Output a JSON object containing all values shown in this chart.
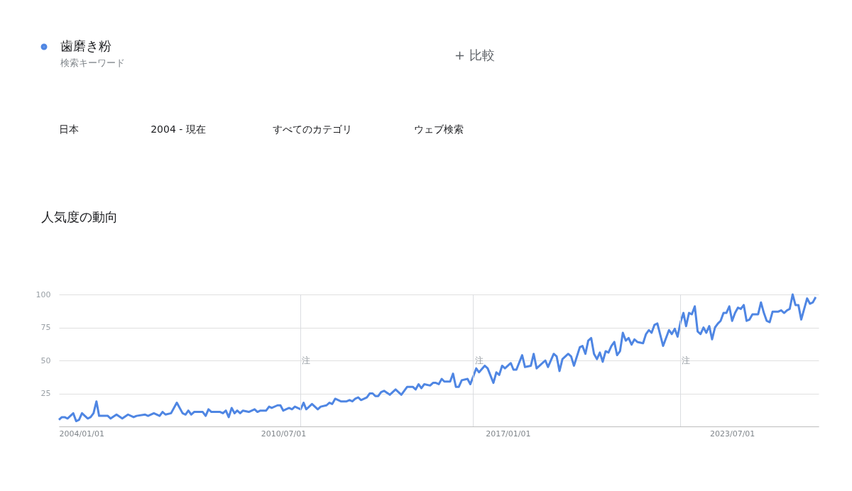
{
  "chart_data": {
    "type": "line",
    "title": "人気度の動向",
    "annotations": [
      "検索キーワード",
      "+  比較",
      "日本",
      "2004 - 現在",
      "すべてのカテゴリ",
      "ウェブ検索"
    ],
    "x": [
      "2004-01",
      "2004-02",
      "2004-03",
      "2004-04",
      "2004-06",
      "2004-07",
      "2004-08",
      "2004-09",
      "2004-10",
      "2004-11",
      "2004-12",
      "2005-01",
      "2005-02",
      "2005-03",
      "2005-06",
      "2005-07",
      "2005-09",
      "2005-11",
      "2006-01",
      "2006-03",
      "2006-04",
      "2006-07",
      "2006-08",
      "2006-10",
      "2006-12",
      "2007-01",
      "2007-02",
      "2007-04",
      "2007-06",
      "2007-08",
      "2007-09",
      "2007-10",
      "2007-11",
      "2007-12",
      "2008-03",
      "2008-04",
      "2008-05",
      "2008-06",
      "2008-09",
      "2008-10",
      "2008-11",
      "2008-12",
      "2009-01",
      "2009-02",
      "2009-03",
      "2009-04",
      "2009-05",
      "2009-07",
      "2009-09",
      "2009-10",
      "2009-11",
      "2010-01",
      "2010-02",
      "2010-03",
      "2010-05",
      "2010-06",
      "2010-07",
      "2010-09",
      "2010-10",
      "2010-11",
      "2011-01",
      "2011-02",
      "2011-03",
      "2011-04",
      "2011-05",
      "2011-07",
      "2011-08",
      "2011-10",
      "2011-11",
      "2011-12",
      "2012-01",
      "2012-03",
      "2012-05",
      "2012-06",
      "2012-07",
      "2012-08",
      "2012-09",
      "2012-10",
      "2012-12",
      "2013-01",
      "2013-02",
      "2013-03",
      "2013-04",
      "2013-05",
      "2013-06",
      "2013-08",
      "2013-10",
      "2013-12",
      "2014-02",
      "2014-04",
      "2014-05",
      "2014-06",
      "2014-07",
      "2014-08",
      "2014-10",
      "2014-11",
      "2014-12",
      "2015-01",
      "2015-02",
      "2015-03",
      "2015-05",
      "2015-06",
      "2015-07",
      "2015-08",
      "2015-09",
      "2015-11",
      "2015-12",
      "2016-02",
      "2016-03",
      "2016-05",
      "2016-06",
      "2016-08",
      "2016-09",
      "2016-10",
      "2016-11",
      "2016-12",
      "2017-02",
      "2017-03",
      "2017-04",
      "2017-06",
      "2017-07",
      "2017-09",
      "2017-10",
      "2017-11",
      "2018-02",
      "2018-03",
      "2018-05",
      "2018-06",
      "2018-07",
      "2018-08",
      "2018-10",
      "2018-11",
      "2018-12",
      "2019-02",
      "2019-03",
      "2019-04",
      "2019-05",
      "2019-06",
      "2019-07",
      "2019-08",
      "2019-09",
      "2019-10",
      "2019-11",
      "2019-12",
      "2020-01",
      "2020-02",
      "2020-03",
      "2020-04",
      "2020-05",
      "2020-06",
      "2020-07",
      "2020-08",
      "2020-09",
      "2020-10",
      "2020-12",
      "2021-01",
      "2021-02",
      "2021-03",
      "2021-04",
      "2021-05",
      "2021-07",
      "2021-09",
      "2021-10",
      "2021-11",
      "2021-12",
      "2022-01",
      "2022-02",
      "2022-03",
      "2022-04",
      "2022-05",
      "2022-06",
      "2022-07",
      "2022-08",
      "2022-09",
      "2022-10",
      "2022-11",
      "2022-12",
      "2023-01",
      "2023-02",
      "2023-03",
      "2023-04",
      "2023-05",
      "2023-06",
      "2023-07",
      "2023-08",
      "2023-09",
      "2023-10",
      "2023-11",
      "2023-12",
      "2024-01",
      "2024-02",
      "2024-04",
      "2024-05",
      "2024-06",
      "2024-07",
      "2024-08",
      "2024-09",
      "2024-11",
      "2024-12",
      "2025-01",
      "2025-02",
      "2025-03",
      "2025-04",
      "2025-05",
      "2025-06",
      "2025-07",
      "2025-09",
      "2025-10",
      "2025-11",
      "2025-12"
    ],
    "series": [
      {
        "name": "歯磨き粉",
        "color": "#4f86e3",
        "values": [
          5,
          7,
          7,
          6,
          10,
          4,
          5,
          10,
          8,
          6,
          7,
          10,
          19,
          8,
          8,
          6,
          9,
          6,
          9,
          7,
          8,
          9,
          8,
          10,
          8,
          11,
          9,
          10,
          18,
          10,
          9,
          12,
          9,
          11,
          11,
          8,
          13,
          11,
          11,
          10,
          12,
          7,
          14,
          10,
          12,
          10,
          12,
          11,
          13,
          11,
          12,
          12,
          15,
          14,
          16,
          16,
          12,
          14,
          13,
          15,
          13,
          18,
          13,
          15,
          17,
          13,
          15,
          16,
          18,
          17,
          21,
          19,
          19,
          20,
          19,
          21,
          22,
          20,
          22,
          25,
          25,
          23,
          23,
          26,
          27,
          24,
          28,
          24,
          30,
          30,
          28,
          32,
          29,
          32,
          31,
          33,
          33,
          32,
          36,
          34,
          34,
          40,
          30,
          30,
          35,
          36,
          32,
          44,
          41,
          46,
          44,
          33,
          41,
          39,
          46,
          44,
          48,
          43,
          43,
          54,
          45,
          46,
          55,
          44,
          50,
          45,
          55,
          53,
          42,
          51,
          55,
          53,
          46,
          60,
          61,
          55,
          65,
          67,
          55,
          51,
          56,
          49,
          57,
          56,
          61,
          64,
          54,
          57,
          71,
          65,
          67,
          62,
          66,
          64,
          63,
          70,
          73,
          71,
          77,
          78,
          61,
          73,
          70,
          74,
          68,
          79,
          86,
          76,
          86,
          85,
          91,
          72,
          70,
          75,
          71,
          76,
          66,
          75,
          78,
          80,
          86,
          86,
          91,
          80,
          86,
          90,
          89,
          92,
          80,
          81,
          85,
          85,
          94,
          86,
          80,
          79,
          87,
          87,
          88,
          86,
          88,
          89,
          100,
          92,
          92,
          81,
          97,
          93,
          94,
          98
        ]
      }
    ],
    "xlim": [
      "2004-01-01",
      "2026-01-01"
    ],
    "xticks": [
      {
        "value": "2004-01-01",
        "label": "2004/01/01"
      },
      {
        "value": "2010-07-01",
        "label": "2010/07/01"
      },
      {
        "value": "2017-01-01",
        "label": "2017/01/01"
      },
      {
        "value": "2023-07-01",
        "label": "2023/07/01"
      }
    ],
    "ylim": [
      0,
      100
    ],
    "yticks": [
      {
        "value": 0,
        "label": null
      },
      25,
      50,
      75,
      100
    ],
    "ref_lines": [
      {
        "axis": "x",
        "value": "2011-01-01",
        "label": "注",
        "color": "#dadce0"
      },
      {
        "axis": "x",
        "value": "2016-01-01",
        "label": "注",
        "color": "#dadce0"
      },
      {
        "axis": "x",
        "value": "2022-01-01",
        "label": "注",
        "color": "#dadce0"
      }
    ],
    "grid": "y",
    "legend": "top left",
    "marker": "none",
    "line_style": "solid"
  }
}
